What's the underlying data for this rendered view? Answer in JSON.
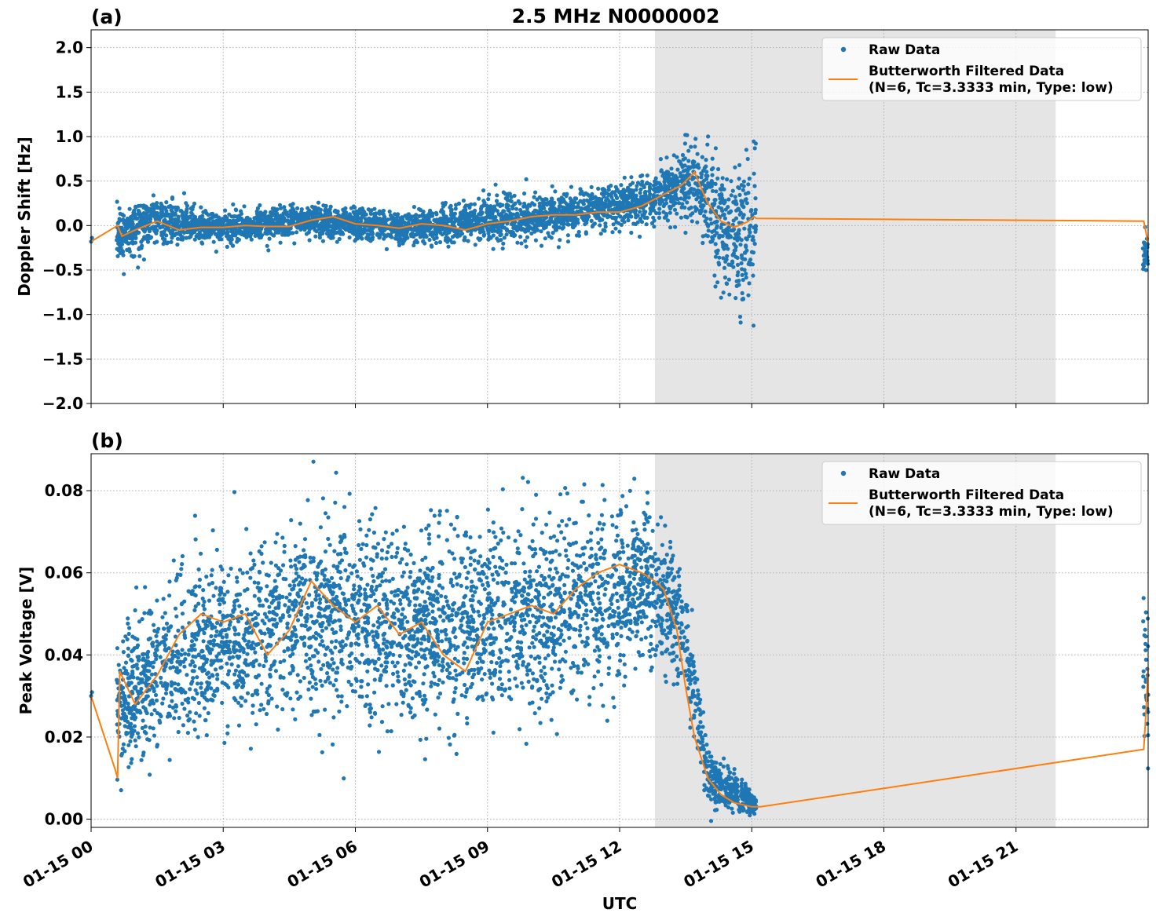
{
  "figure": {
    "title": "2.5 MHz N0000002",
    "xlabel": "UTC"
  },
  "colors": {
    "raw": "#1f77b4",
    "filtered": "#ff7f0e",
    "shade": "#e5e5e5",
    "grid": "#b0b0b0"
  },
  "chart_data": [
    {
      "type": "scatter",
      "panel_label": "(a)",
      "ylabel": "Doppler Shift [Hz]",
      "xlim": [
        "01-15 00:00",
        "01-15 24:00"
      ],
      "ylim": [
        -2.0,
        2.2
      ],
      "x_ticks": [
        "01-15 00",
        "01-15 03",
        "01-15 06",
        "01-15 09",
        "01-15 12",
        "01-15 15",
        "01-15 18",
        "01-15 21"
      ],
      "y_ticks": [
        "−2.0",
        "−1.5",
        "−1.0",
        "−0.5",
        "0.0",
        "0.5",
        "1.0",
        "1.5",
        "2.0"
      ],
      "y_tick_values": [
        -2.0,
        -1.5,
        -1.0,
        -0.5,
        0.0,
        0.5,
        1.0,
        1.5,
        2.0
      ],
      "grid": true,
      "legend_position": "top-right",
      "shaded_interval_hours": [
        12.8,
        21.9
      ],
      "series": [
        {
          "name": "Raw Data",
          "kind": "scatter",
          "approx_envelope": [
            {
              "hour": 0.6,
              "center": -0.1,
              "spread": 0.3
            },
            {
              "hour": 1.5,
              "center": 0.05,
              "spread": 0.3
            },
            {
              "hour": 3.0,
              "center": -0.03,
              "spread": 0.18
            },
            {
              "hour": 5.0,
              "center": 0.05,
              "spread": 0.2
            },
            {
              "hour": 7.0,
              "center": -0.03,
              "spread": 0.18
            },
            {
              "hour": 9.0,
              "center": 0.05,
              "spread": 0.25
            },
            {
              "hour": 11.0,
              "center": 0.15,
              "spread": 0.25
            },
            {
              "hour": 12.8,
              "center": 0.3,
              "spread": 0.3
            },
            {
              "hour": 13.6,
              "center": 0.55,
              "spread": 0.45
            },
            {
              "hour": 14.3,
              "center": 0.0,
              "spread": 0.7
            },
            {
              "hour": 14.9,
              "center": -0.1,
              "spread": 1.1
            },
            {
              "hour": 23.95,
              "center": -0.3,
              "spread": 0.25
            }
          ]
        },
        {
          "name": "Butterworth Filtered Data\n(N=6, Tc=3.3333 min, Type: low)",
          "kind": "line",
          "x_hours": [
            0.0,
            0.6,
            0.7,
            1.0,
            1.5,
            2.0,
            2.5,
            3.0,
            3.5,
            4.0,
            4.5,
            5.0,
            5.5,
            6.0,
            6.5,
            7.0,
            7.5,
            8.0,
            8.5,
            9.0,
            9.5,
            10.0,
            10.5,
            11.0,
            11.5,
            12.0,
            12.5,
            13.0,
            13.4,
            13.7,
            14.0,
            14.3,
            14.6,
            14.9,
            15.05,
            15.1,
            23.9,
            24.0
          ],
          "y": [
            -0.18,
            0.0,
            -0.12,
            -0.05,
            0.05,
            -0.05,
            -0.02,
            -0.02,
            0.0,
            -0.01,
            -0.01,
            0.06,
            0.1,
            0.02,
            0.0,
            -0.03,
            0.02,
            0.0,
            -0.05,
            0.02,
            0.05,
            0.1,
            0.12,
            0.12,
            0.15,
            0.15,
            0.22,
            0.35,
            0.45,
            0.6,
            0.25,
            0.05,
            -0.02,
            0.04,
            0.1,
            0.08,
            0.05,
            -0.2
          ]
        }
      ]
    },
    {
      "type": "scatter",
      "panel_label": "(b)",
      "ylabel": "Peak Voltage [V]",
      "xlim": [
        "01-15 00:00",
        "01-15 24:00"
      ],
      "ylim": [
        -0.002,
        0.089
      ],
      "x_ticks": [
        "01-15 00",
        "01-15 03",
        "01-15 06",
        "01-15 09",
        "01-15 12",
        "01-15 15",
        "01-15 18",
        "01-15 21"
      ],
      "y_ticks": [
        "0.00",
        "0.02",
        "0.04",
        "0.06",
        "0.08"
      ],
      "y_tick_values": [
        0.0,
        0.02,
        0.04,
        0.06,
        0.08
      ],
      "grid": true,
      "legend_position": "top-right",
      "shaded_interval_hours": [
        12.8,
        21.9
      ],
      "series": [
        {
          "name": "Raw Data",
          "kind": "scatter",
          "approx_envelope": [
            {
              "hour": 0.7,
              "center": 0.028,
              "spread": 0.018
            },
            {
              "hour": 2.0,
              "center": 0.04,
              "spread": 0.022
            },
            {
              "hour": 3.5,
              "center": 0.045,
              "spread": 0.022
            },
            {
              "hour": 5.0,
              "center": 0.05,
              "spread": 0.025
            },
            {
              "hour": 7.0,
              "center": 0.045,
              "spread": 0.025
            },
            {
              "hour": 9.0,
              "center": 0.048,
              "spread": 0.025
            },
            {
              "hour": 11.0,
              "center": 0.052,
              "spread": 0.025
            },
            {
              "hour": 12.8,
              "center": 0.058,
              "spread": 0.02
            },
            {
              "hour": 13.5,
              "center": 0.045,
              "spread": 0.015
            },
            {
              "hour": 14.0,
              "center": 0.01,
              "spread": 0.008
            },
            {
              "hour": 15.0,
              "center": 0.004,
              "spread": 0.003
            },
            {
              "hour": 23.95,
              "center": 0.035,
              "spread": 0.018
            }
          ]
        },
        {
          "name": "Butterworth Filtered Data\n(N=6, Tc=3.3333 min, Type: low)",
          "kind": "line",
          "x_hours": [
            0.0,
            0.55,
            0.6,
            0.65,
            1.0,
            1.5,
            2.0,
            2.5,
            3.0,
            3.5,
            4.0,
            4.5,
            5.0,
            5.5,
            6.0,
            6.5,
            7.0,
            7.5,
            8.0,
            8.5,
            9.0,
            9.5,
            10.0,
            10.5,
            11.0,
            11.5,
            12.0,
            12.5,
            12.8,
            13.0,
            13.3,
            13.5,
            13.7,
            14.0,
            14.3,
            14.6,
            15.0,
            15.2,
            23.9,
            23.95,
            24.0
          ],
          "y": [
            0.03,
            0.012,
            0.01,
            0.036,
            0.028,
            0.035,
            0.045,
            0.05,
            0.048,
            0.05,
            0.04,
            0.046,
            0.058,
            0.052,
            0.048,
            0.052,
            0.045,
            0.048,
            0.04,
            0.036,
            0.048,
            0.05,
            0.052,
            0.05,
            0.056,
            0.06,
            0.062,
            0.06,
            0.058,
            0.056,
            0.046,
            0.032,
            0.02,
            0.01,
            0.006,
            0.004,
            0.003,
            0.003,
            0.017,
            0.026,
            0.037
          ]
        }
      ]
    }
  ]
}
